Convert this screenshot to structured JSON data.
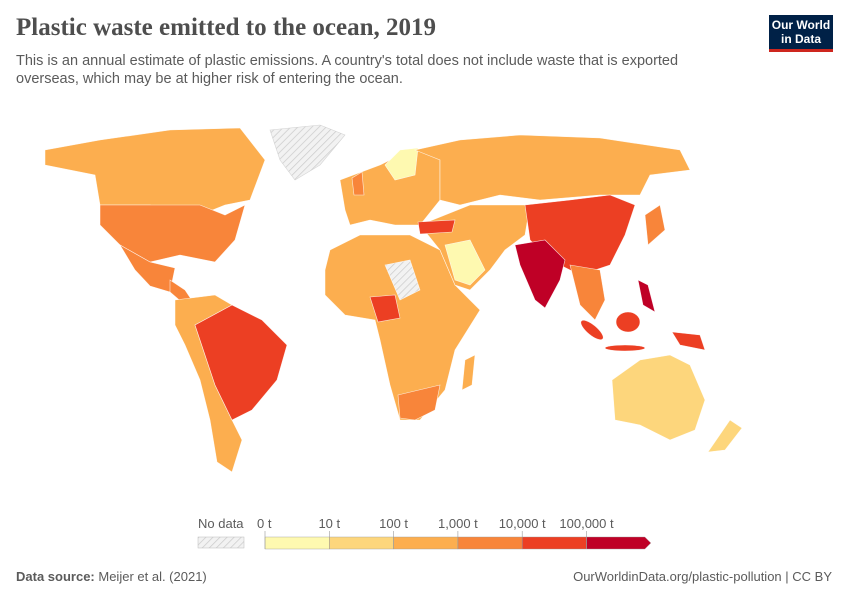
{
  "header": {
    "title": "Plastic waste emitted to the ocean, 2019",
    "subtitle": "This is an annual estimate of plastic emissions. A country's total does not include waste that is exported overseas, which may be at higher risk of entering the ocean.",
    "logo": "Our World in Data"
  },
  "legend": {
    "no_data": "No data",
    "bins": [
      "0 t",
      "10 t",
      "100 t",
      "1,000 t",
      "10,000 t",
      "100,000 t"
    ],
    "colors": [
      "#fef9b0",
      "#fdd67c",
      "#fcae4f",
      "#f8853a",
      "#ec3f23",
      "#bf0026"
    ],
    "no_data_color": "#e6e6e6"
  },
  "footer": {
    "source_label": "Data source:",
    "source": "Meijer et al. (2021)",
    "link": "OurWorldinData.org/plastic-pollution | CC BY"
  }
}
